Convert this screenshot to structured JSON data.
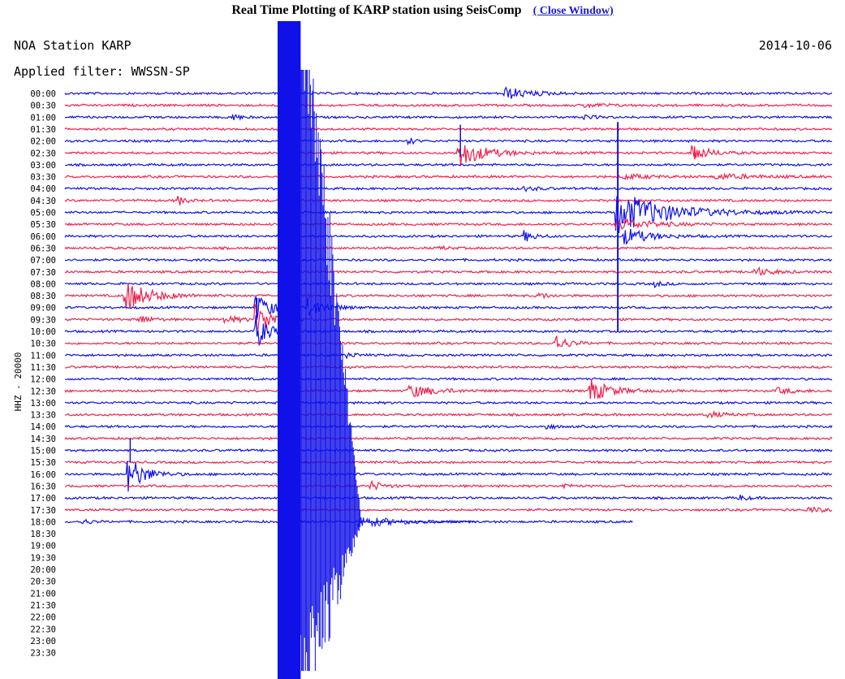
{
  "page": {
    "title": "Real Time Plotting of KARP station using SeisComp",
    "close_link": "( Close Window)"
  },
  "plot": {
    "station_label": "NOA Station KARP",
    "date": "2014-10-06",
    "filter_label": "Applied filter: WWSSN-SP",
    "y_axis_label": "HHZ - 20000",
    "time_labels": [
      "00:00",
      "00:30",
      "01:00",
      "01:30",
      "02:00",
      "02:30",
      "03:00",
      "03:30",
      "04:00",
      "04:30",
      "05:00",
      "05:30",
      "06:00",
      "06:30",
      "07:00",
      "07:30",
      "08:00",
      "08:30",
      "09:00",
      "09:30",
      "10:00",
      "10:30",
      "11:00",
      "11:30",
      "12:00",
      "12:30",
      "13:00",
      "13:30",
      "14:00",
      "14:30",
      "15:00",
      "15:30",
      "16:00",
      "16:30",
      "17:00",
      "17:30",
      "18:00",
      "18:30",
      "19:00",
      "19:30",
      "20:00",
      "20:30",
      "21:00",
      "21:30",
      "22:00",
      "22:30",
      "23:00",
      "23:30"
    ],
    "recorded_trace_count": 37,
    "last_trace_fraction": 0.74,
    "colors": {
      "even_trace": "#1010e8",
      "odd_trace": "#f0204e",
      "text": "#000000"
    },
    "saturated_band": {
      "x_fraction_start": 0.277,
      "x_fraction_end": 0.307
    },
    "events": [
      {
        "row": 0,
        "x": 0.575,
        "amp": 7,
        "decay": 0.03,
        "color_row": true
      },
      {
        "row": 1,
        "x": 0.68,
        "amp": 2,
        "decay": 0.03
      },
      {
        "row": 2,
        "x": 0.22,
        "amp": 4,
        "decay": 0.008
      },
      {
        "row": 2,
        "x": 0.68,
        "amp": 3,
        "decay": 0.008
      },
      {
        "row": 4,
        "x": 0.45,
        "amp": 4,
        "decay": 0.006
      },
      {
        "row": 5,
        "x": 0.515,
        "amp": 16,
        "decay": 0.03
      },
      {
        "row": 5,
        "x": 0.82,
        "amp": 9,
        "decay": 0.02
      },
      {
        "row": 7,
        "x": 0.85,
        "amp": 3,
        "decay": 0.05
      },
      {
        "row": 7,
        "x": 0.73,
        "amp": 3,
        "decay": 0.03
      },
      {
        "row": 8,
        "x": 0.6,
        "amp": 2,
        "decay": 0.02
      },
      {
        "row": 9,
        "x": 0.15,
        "amp": 5,
        "decay": 0.008
      },
      {
        "row": 10,
        "x": 0.72,
        "amp": 26,
        "decay": 0.06
      },
      {
        "row": 11,
        "x": 0.72,
        "amp": 8,
        "decay": 0.04
      },
      {
        "row": 12,
        "x": 0.6,
        "amp": 6,
        "decay": 0.012
      },
      {
        "row": 12,
        "x": 0.73,
        "amp": 10,
        "decay": 0.03
      },
      {
        "row": 13,
        "x": 0.49,
        "amp": 2,
        "decay": 0.01
      },
      {
        "row": 15,
        "x": 0.9,
        "amp": 5,
        "decay": 0.02
      },
      {
        "row": 16,
        "x": 0.77,
        "amp": 3,
        "decay": 0.01
      },
      {
        "row": 17,
        "x": 0.08,
        "amp": 18,
        "decay": 0.03
      },
      {
        "row": 17,
        "x": 0.62,
        "amp": 3,
        "decay": 0.01
      },
      {
        "row": 18,
        "x": 0.25,
        "amp": 16,
        "decay": 0.02
      },
      {
        "row": 18,
        "x": 0.32,
        "amp": 11,
        "decay": 0.02
      },
      {
        "row": 19,
        "x": 0.1,
        "amp": 5,
        "decay": 0.012
      },
      {
        "row": 19,
        "x": 0.21,
        "amp": 4,
        "decay": 0.02
      },
      {
        "row": 19,
        "x": 0.25,
        "amp": 18,
        "decay": 0.02
      },
      {
        "row": 20,
        "x": 0.25,
        "amp": 20,
        "decay": 0.015
      },
      {
        "row": 21,
        "x": 0.64,
        "amp": 10,
        "decay": 0.015
      },
      {
        "row": 22,
        "x": 0.37,
        "amp": 3,
        "decay": 0.01
      },
      {
        "row": 25,
        "x": 0.45,
        "amp": 8,
        "decay": 0.03
      },
      {
        "row": 25,
        "x": 0.685,
        "amp": 14,
        "decay": 0.025
      },
      {
        "row": 25,
        "x": 0.93,
        "amp": 3,
        "decay": 0.025
      },
      {
        "row": 27,
        "x": 0.84,
        "amp": 3,
        "decay": 0.02
      },
      {
        "row": 28,
        "x": 0.63,
        "amp": 3,
        "decay": 0.008
      },
      {
        "row": 32,
        "x": 0.085,
        "amp": 20,
        "decay": 0.02
      },
      {
        "row": 33,
        "x": 0.4,
        "amp": 5,
        "decay": 0.015
      },
      {
        "row": 33,
        "x": 0.65,
        "amp": 3,
        "decay": 0.01
      },
      {
        "row": 34,
        "x": 0.88,
        "amp": 3,
        "decay": 0.01
      },
      {
        "row": 35,
        "x": 0.97,
        "amp": 3,
        "decay": 0.02
      },
      {
        "row": 36,
        "x": 0.025,
        "amp": 3,
        "decay": 0.01
      }
    ],
    "big_quake": {
      "x_fraction": 0.72,
      "top_row": 5,
      "bottom_row": 20
    }
  }
}
